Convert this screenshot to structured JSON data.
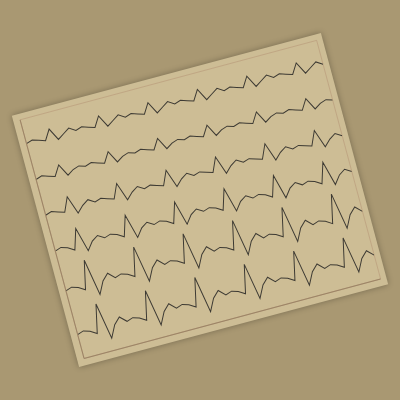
{
  "chart_data": {
    "type": "line",
    "x": [
      0,
      1,
      2,
      3,
      4,
      5,
      6,
      7,
      8,
      9,
      10,
      11,
      12,
      13,
      14,
      15,
      16,
      17,
      18,
      19,
      20,
      21,
      22,
      23,
      24,
      25,
      26,
      27,
      28,
      29,
      30,
      31,
      32,
      33,
      34,
      35,
      36,
      37,
      38,
      39,
      40,
      41,
      42,
      43,
      44,
      45,
      46,
      47,
      48
    ],
    "series": [
      {
        "color": "#3d3a33",
        "values": [
          54,
          54.5,
          54,
          53.5,
          56,
          53,
          54,
          55,
          54,
          54.5,
          54,
          53.5,
          56,
          53,
          54,
          55,
          54,
          54.5,
          54,
          53.5,
          56,
          53,
          54,
          55,
          54,
          54.5,
          54,
          53.5,
          56,
          53,
          54,
          55,
          54,
          54.5,
          54,
          53.5,
          56,
          53,
          54,
          55,
          54,
          54.5,
          54,
          53.5,
          56,
          53,
          54,
          55,
          54
        ]
      },
      {
        "color": "#3d3a33",
        "values": [
          45,
          45.5,
          45,
          44.5,
          47,
          44,
          45,
          45.5,
          45,
          45.5,
          45,
          44.5,
          47,
          44,
          45,
          45.5,
          45,
          45.5,
          45,
          44.5,
          47,
          44,
          45,
          45.5,
          45,
          45.5,
          45,
          44.5,
          47,
          44,
          45,
          45.5,
          45,
          45.5,
          45,
          44.5,
          47,
          44,
          45,
          45.5,
          45,
          45.5,
          45,
          44.5,
          47,
          44,
          45,
          45.5,
          45
        ]
      },
      {
        "color": "#3d3a33",
        "values": [
          36,
          36.5,
          36,
          35.5,
          39,
          34.5,
          36,
          37,
          36,
          36.5,
          36,
          35.5,
          39,
          34.5,
          36,
          37,
          36,
          36.5,
          36,
          35.5,
          39,
          34.5,
          36,
          37,
          36,
          36.5,
          36,
          35.5,
          39,
          34.5,
          36,
          37,
          36,
          36.5,
          36,
          35.5,
          39,
          34.5,
          36,
          37,
          36,
          36.5,
          36,
          35.5,
          39,
          34.5,
          36,
          37,
          36
        ]
      },
      {
        "color": "#3d3a33",
        "values": [
          27,
          27.5,
          27,
          26,
          31,
          25,
          27,
          28,
          27,
          27.5,
          27,
          26,
          31,
          25,
          27,
          28,
          27,
          27.5,
          27,
          26,
          31,
          25,
          27,
          28,
          27,
          27.5,
          27,
          26,
          31,
          25,
          27,
          28,
          27,
          27.5,
          27,
          26,
          31,
          25,
          27,
          28,
          27,
          27.5,
          27,
          26,
          31,
          25,
          27,
          28,
          27
        ]
      },
      {
        "color": "#3d3a33",
        "values": [
          17,
          17.5,
          17,
          16,
          23,
          14,
          17,
          18.5,
          17,
          17.5,
          17,
          16,
          23,
          14,
          17,
          18.5,
          17,
          17.5,
          17,
          16,
          23,
          14,
          17,
          18.5,
          17,
          17.5,
          17,
          16,
          23,
          14,
          17,
          18.5,
          17,
          17.5,
          17,
          16,
          23,
          14,
          17,
          18.5,
          17,
          17.5,
          17,
          16,
          23,
          14,
          17,
          18.5,
          17
        ]
      },
      {
        "color": "#3d3a33",
        "values": [
          6,
          6.5,
          6,
          5,
          12,
          3,
          6,
          7.5,
          6,
          6.5,
          6,
          5,
          12,
          3,
          6,
          7.5,
          6,
          6.5,
          6,
          5,
          12,
          3,
          6,
          7.5,
          6,
          6.5,
          6,
          5,
          12,
          3,
          6,
          7.5,
          6,
          6.5,
          6,
          5,
          12,
          3,
          6,
          7.5,
          6,
          6.5,
          6,
          5,
          12,
          3,
          6,
          7.5,
          6
        ]
      }
    ],
    "xlim": [
      0,
      48
    ],
    "ylim": [
      0,
      60
    ],
    "xticks": [
      0,
      4,
      8,
      12,
      16,
      20,
      24,
      28,
      32,
      36,
      40,
      44,
      48
    ],
    "yticks": [
      0,
      5,
      10,
      15,
      20,
      25,
      30,
      35,
      40,
      45,
      50,
      55,
      60
    ],
    "grid": true,
    "tick_labels": false
  }
}
